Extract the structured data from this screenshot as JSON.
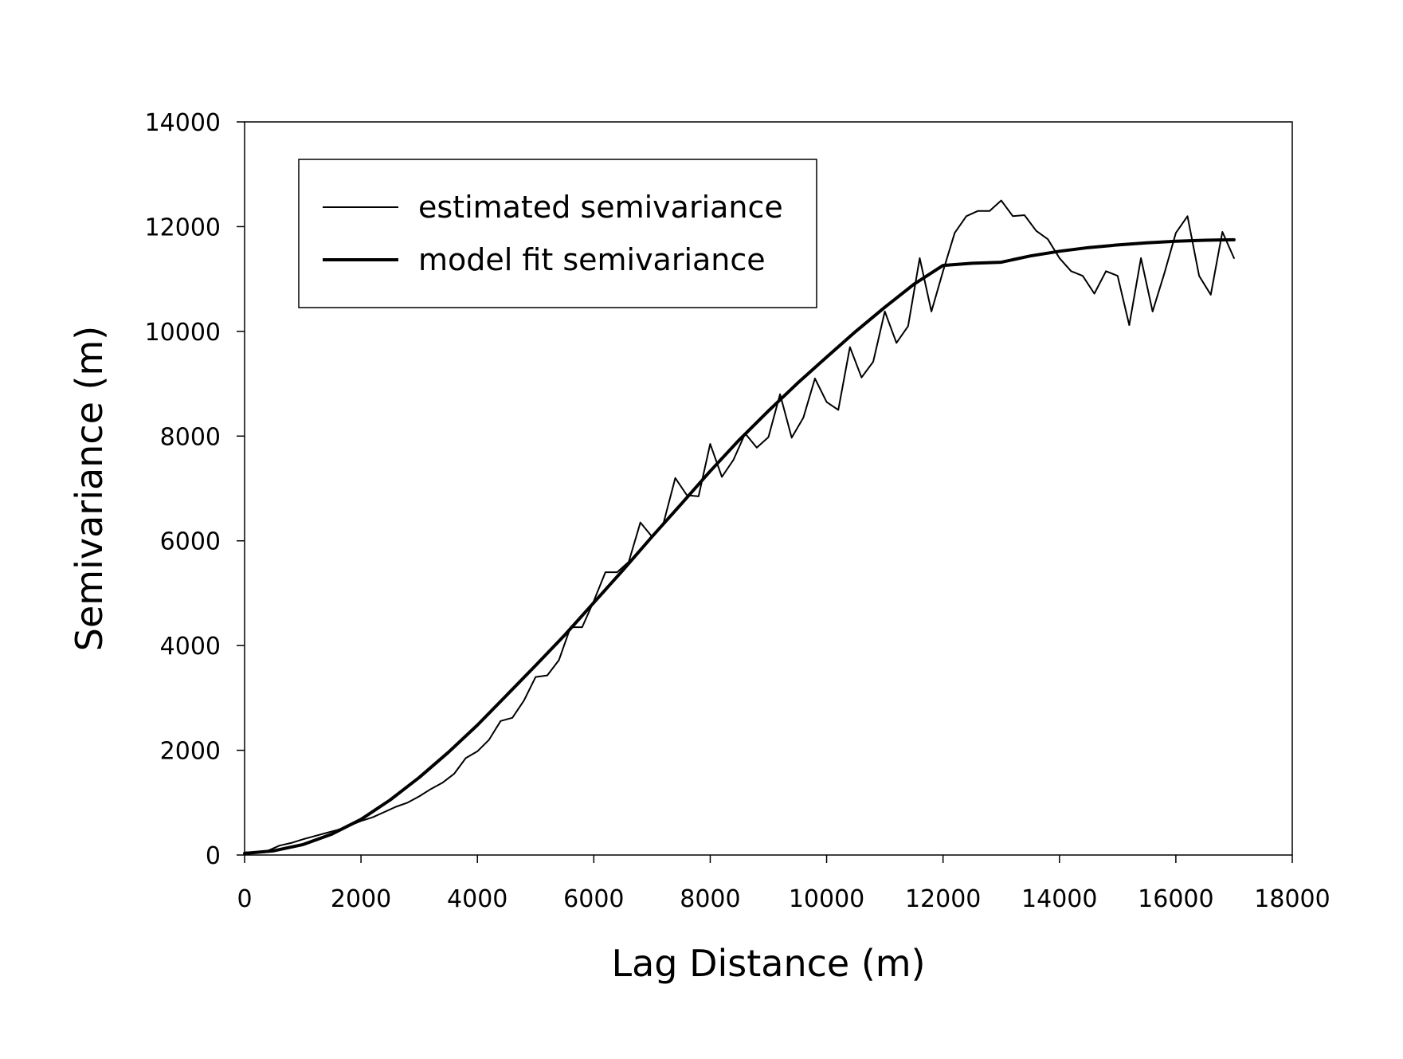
{
  "chart_data": {
    "type": "line",
    "xlabel": "Lag Distance (m)",
    "ylabel": "Semivariance (m)",
    "xlim": [
      0,
      18000
    ],
    "ylim": [
      0,
      14000
    ],
    "xticks": [
      0,
      2000,
      4000,
      6000,
      8000,
      10000,
      12000,
      14000,
      16000,
      18000
    ],
    "yticks": [
      0,
      2000,
      4000,
      6000,
      8000,
      10000,
      12000,
      14000
    ],
    "grid": false,
    "legend_position": "top-left",
    "colors": {
      "line": "#000000",
      "axis": "#000000",
      "background": "#ffffff"
    },
    "series": [
      {
        "name": "estimated semivariance",
        "style": "thin",
        "x": [
          0,
          200,
          400,
          600,
          800,
          1000,
          1200,
          1400,
          1600,
          1800,
          2000,
          2200,
          2400,
          2600,
          2800,
          3000,
          3200,
          3400,
          3600,
          3800,
          4000,
          4200,
          4400,
          4600,
          4800,
          5000,
          5200,
          5400,
          5600,
          5800,
          6000,
          6200,
          6400,
          6600,
          6800,
          7000,
          7200,
          7400,
          7600,
          7800,
          8000,
          8200,
          8400,
          8600,
          8800,
          9000,
          9200,
          9400,
          9600,
          9800,
          10000,
          10200,
          10400,
          10600,
          10800,
          11000,
          11200,
          11400,
          11600,
          11800,
          12000,
          12200,
          12400,
          12600,
          12800,
          13000,
          13200,
          13400,
          13600,
          13800,
          14000,
          14200,
          14400,
          14600,
          14800,
          15000,
          15200,
          15400,
          15600,
          15800,
          16000,
          16200,
          16400,
          16600,
          16800,
          17000
        ],
        "values": [
          50,
          60,
          80,
          180,
          230,
          300,
          360,
          420,
          480,
          560,
          650,
          720,
          820,
          920,
          1000,
          1120,
          1260,
          1380,
          1550,
          1850,
          1980,
          2200,
          2560,
          2620,
          2950,
          3400,
          3430,
          3720,
          4350,
          4350,
          4850,
          5400,
          5400,
          5600,
          6350,
          6080,
          6350,
          7200,
          6870,
          6850,
          7850,
          7220,
          7550,
          8050,
          7780,
          7980,
          8800,
          7970,
          8350,
          9100,
          8650,
          8500,
          9700,
          9120,
          9420,
          10380,
          9780,
          10100,
          11400,
          10380,
          11150,
          11880,
          12200,
          12300,
          12300,
          12500,
          12200,
          12220,
          11920,
          11760,
          11400,
          11150,
          11060,
          10720,
          11150,
          11060,
          10120,
          11400,
          10380,
          11100,
          11880,
          12200,
          11060,
          10700,
          11900,
          11400
        ]
      },
      {
        "name": "model fit semivariance",
        "style": "thick",
        "x": [
          0,
          500,
          1000,
          1500,
          2000,
          2500,
          3000,
          3500,
          4000,
          4500,
          5000,
          5500,
          6000,
          6500,
          7000,
          7500,
          8000,
          8500,
          9000,
          9500,
          10000,
          10500,
          11000,
          11500,
          12000,
          12500,
          13000,
          13500,
          14000,
          14500,
          15000,
          15500,
          16000,
          16500,
          17000
        ],
        "values": [
          30,
          80,
          200,
          400,
          680,
          1050,
          1480,
          1960,
          2480,
          3050,
          3620,
          4200,
          4820,
          5440,
          6080,
          6700,
          7330,
          7930,
          8480,
          9010,
          9510,
          10000,
          10460,
          10900,
          11260,
          11300,
          11320,
          11440,
          11530,
          11600,
          11650,
          11690,
          11720,
          11740,
          11750
        ]
      }
    ]
  }
}
